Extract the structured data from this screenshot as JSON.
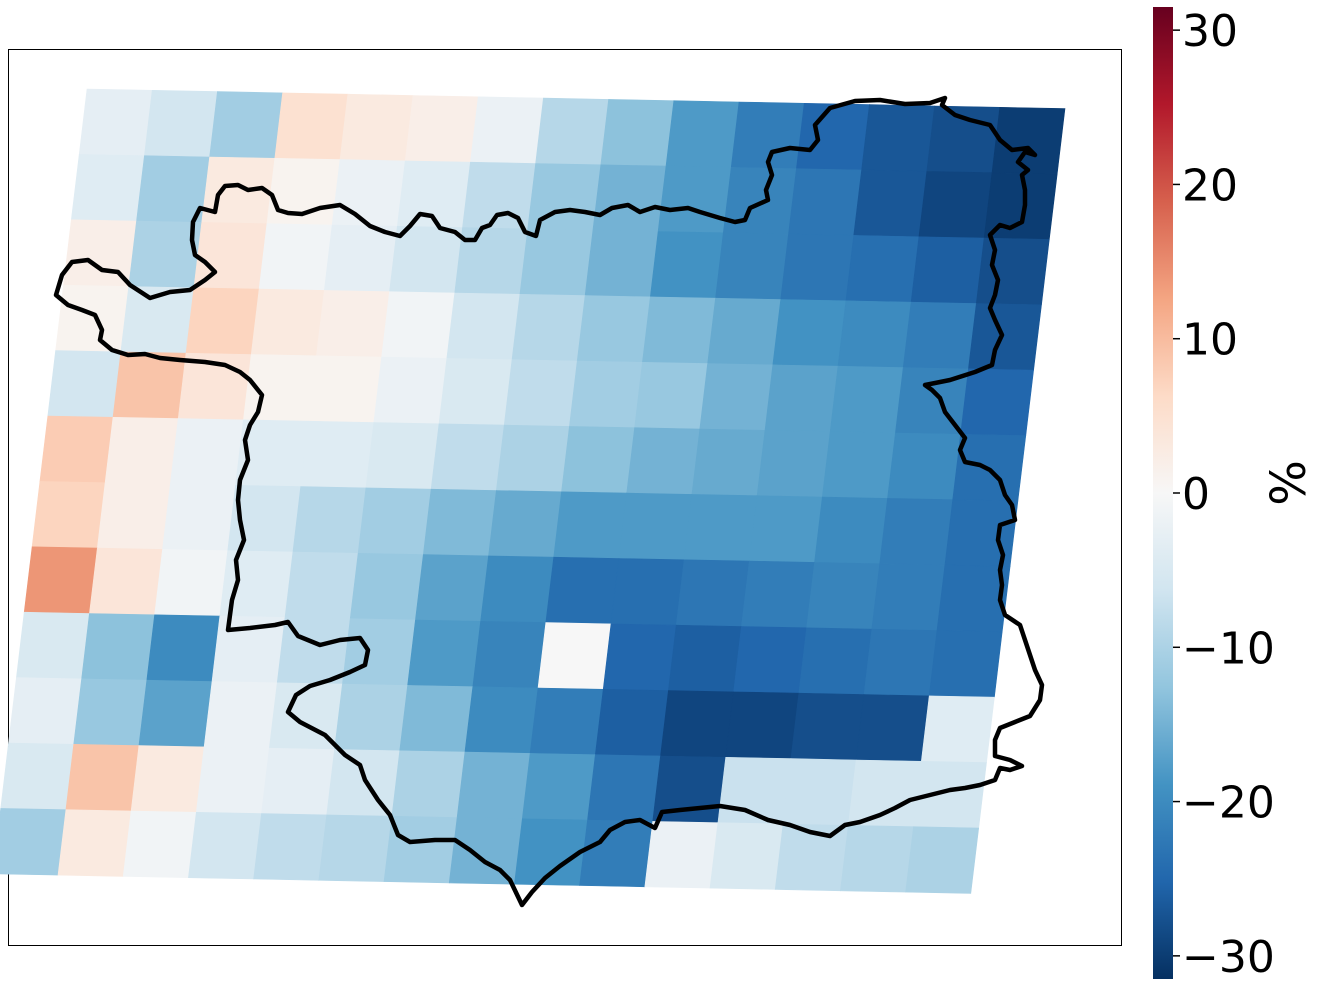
{
  "chart_data": {
    "type": "heatmap",
    "title": "",
    "colorbar": {
      "label": "%",
      "range": [
        -31.5,
        31.5
      ],
      "ticks": [
        -30,
        -20,
        -10,
        0,
        10,
        20,
        30
      ],
      "tick_labels": [
        "−30",
        "−20",
        "−10",
        "0",
        "10",
        "20",
        "30"
      ],
      "colormap": "RdBu_r",
      "colors": [
        "#053061",
        "#2166ac",
        "#4393c3",
        "#92c5de",
        "#d1e5f0",
        "#f7f7f7",
        "#fddbc7",
        "#f4a582",
        "#d6604d",
        "#b2182b",
        "#67001f"
      ]
    },
    "grid_rows": 12,
    "grid_cols": 16,
    "missing_value": null,
    "values": [
      [
        -3,
        -6,
        -11,
        5,
        3,
        2,
        -2,
        -9,
        -13,
        -18,
        -22,
        -25,
        -27,
        -28,
        -30,
        null
      ],
      [
        -4,
        -11,
        3,
        1,
        -2,
        -4,
        -8,
        -12,
        -15,
        -18,
        -21,
        -23,
        -27,
        -29,
        -30,
        null
      ],
      [
        2,
        -10,
        4,
        -1,
        -3,
        -6,
        -9,
        -12,
        -15,
        -19,
        -21,
        -23,
        -24,
        -26,
        -28,
        null
      ],
      [
        1,
        -5,
        7,
        3,
        2,
        -1,
        -6,
        -9,
        -12,
        -14,
        -16,
        -19,
        -20,
        -22,
        -27,
        null
      ],
      [
        -6,
        9,
        4,
        1,
        1,
        -2,
        -5,
        -8,
        -11,
        -12,
        -15,
        -17,
        -18,
        -21,
        -25,
        null
      ],
      [
        8,
        2,
        -2,
        -4,
        -4,
        -5,
        -8,
        -10,
        -13,
        -15,
        -16,
        -17,
        -18,
        -20,
        -24,
        null
      ],
      [
        7,
        2,
        -2,
        -6,
        -9,
        -11,
        -14,
        -16,
        -18,
        -18,
        -18,
        -18,
        -20,
        -22,
        -24,
        null
      ],
      [
        14,
        4,
        -1,
        -4,
        -8,
        -12,
        -17,
        -20,
        -24,
        -24,
        -23,
        -22,
        -21,
        -22,
        -24,
        null
      ],
      [
        -5,
        -13,
        -20,
        -3,
        -8,
        -11,
        -18,
        -21,
        0,
        -25,
        -26,
        -25,
        -24,
        -23,
        -24,
        null
      ],
      [
        -3,
        -12,
        -17,
        -2,
        -5,
        -10,
        -14,
        -20,
        -22,
        -26,
        -29,
        -29,
        -28,
        -28,
        -4,
        null
      ],
      [
        -5,
        9,
        3,
        -2,
        -3,
        -6,
        -10,
        -15,
        -18,
        -23,
        -28,
        -7,
        -7,
        -6,
        -6,
        null
      ],
      [
        -11,
        3,
        -1,
        -6,
        -8,
        -9,
        -11,
        -15,
        -19,
        -22,
        -2,
        -5,
        -8,
        -9,
        -10,
        null
      ]
    ]
  }
}
